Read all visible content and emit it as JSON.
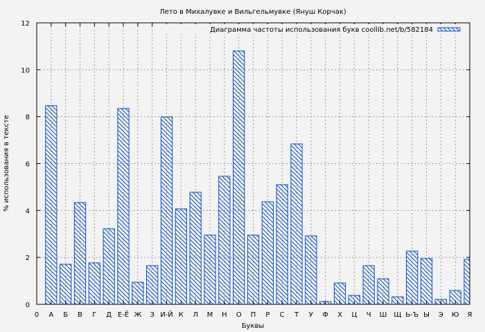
{
  "chart_data": {
    "type": "bar",
    "title": "Лето в Михалувке и Вильгельмувке (Януш Корчак)",
    "xlabel": "Буквы",
    "ylabel": "% использования в тексте",
    "xlim": [
      0,
      30
    ],
    "ylim": [
      0,
      12
    ],
    "yticks": [
      0,
      2,
      4,
      6,
      8,
      10,
      12
    ],
    "x_zero_label": "0",
    "grid": true,
    "legend": {
      "position": "top-right",
      "label": "Диаграмма частоты использования букв coollib.net/b/582184"
    },
    "series_color": "#0a4fc4",
    "categories": [
      "А",
      "Б",
      "В",
      "Г",
      "Д",
      "Е-Ё",
      "Ж",
      "З",
      "И-Й",
      "К",
      "Л",
      "М",
      "Н",
      "О",
      "П",
      "Р",
      "С",
      "Т",
      "У",
      "Ф",
      "Х",
      "Ц",
      "Ч",
      "Ш",
      "Щ",
      "Ь-Ъ",
      "Ы",
      "Э",
      "Ю",
      "Я"
    ],
    "values": [
      8.47,
      1.71,
      4.34,
      1.77,
      3.22,
      8.35,
      0.94,
      1.65,
      7.99,
      4.07,
      4.78,
      2.95,
      5.46,
      10.8,
      2.95,
      4.37,
      5.1,
      6.84,
      2.92,
      0.12,
      0.91,
      0.38,
      1.65,
      1.09,
      0.32,
      2.27,
      1.95,
      0.21,
      0.59,
      1.92
    ]
  }
}
